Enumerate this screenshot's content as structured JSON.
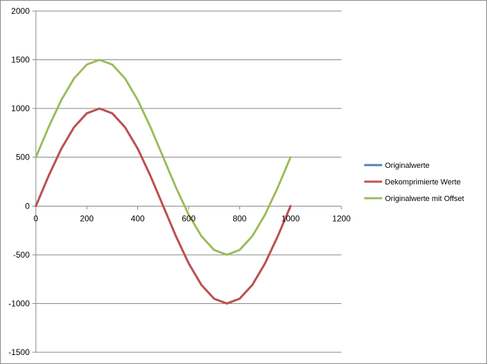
{
  "chart_data": {
    "type": "line",
    "title": "",
    "xlabel": "",
    "ylabel": "",
    "xlim": [
      0,
      1200
    ],
    "ylim": [
      -1500,
      2000
    ],
    "x_ticks": [
      0,
      200,
      400,
      600,
      800,
      1000,
      1200
    ],
    "y_ticks": [
      2000,
      1500,
      1000,
      500,
      0,
      -500,
      -1000,
      -1500
    ],
    "x_tick_labels": [
      "0",
      "200",
      "400",
      "600",
      "800",
      "1000",
      "1200"
    ],
    "y_tick_labels": [
      "2000",
      "1500",
      "1000",
      "500",
      "0",
      "-500",
      "-1000",
      "-1500"
    ],
    "grid": "horizontal",
    "legend_position": "right",
    "x": [
      0,
      50,
      100,
      150,
      200,
      250,
      300,
      350,
      400,
      450,
      500,
      550,
      600,
      650,
      700,
      750,
      800,
      850,
      900,
      950,
      1000
    ],
    "series": [
      {
        "name": "Originalwerte",
        "color": "#4F81BD",
        "values": [
          0,
          309,
          588,
          809,
          951,
          1000,
          951,
          809,
          588,
          309,
          0,
          -309,
          -588,
          -809,
          -951,
          -1000,
          -951,
          -809,
          -588,
          -309,
          0
        ]
      },
      {
        "name": "Dekomprimierte Werte",
        "color": "#C0504D",
        "values": [
          0,
          309,
          588,
          809,
          951,
          1000,
          951,
          809,
          588,
          309,
          0,
          -309,
          -588,
          -809,
          -951,
          -1000,
          -951,
          -809,
          -588,
          -309,
          0
        ]
      },
      {
        "name": "Originalwerte mit Offset",
        "color": "#9BBB59",
        "values": [
          500,
          809,
          1088,
          1309,
          1451,
          1500,
          1451,
          1309,
          1088,
          809,
          500,
          191,
          -88,
          -309,
          -451,
          -500,
          -451,
          -309,
          -88,
          191,
          500
        ]
      }
    ]
  }
}
